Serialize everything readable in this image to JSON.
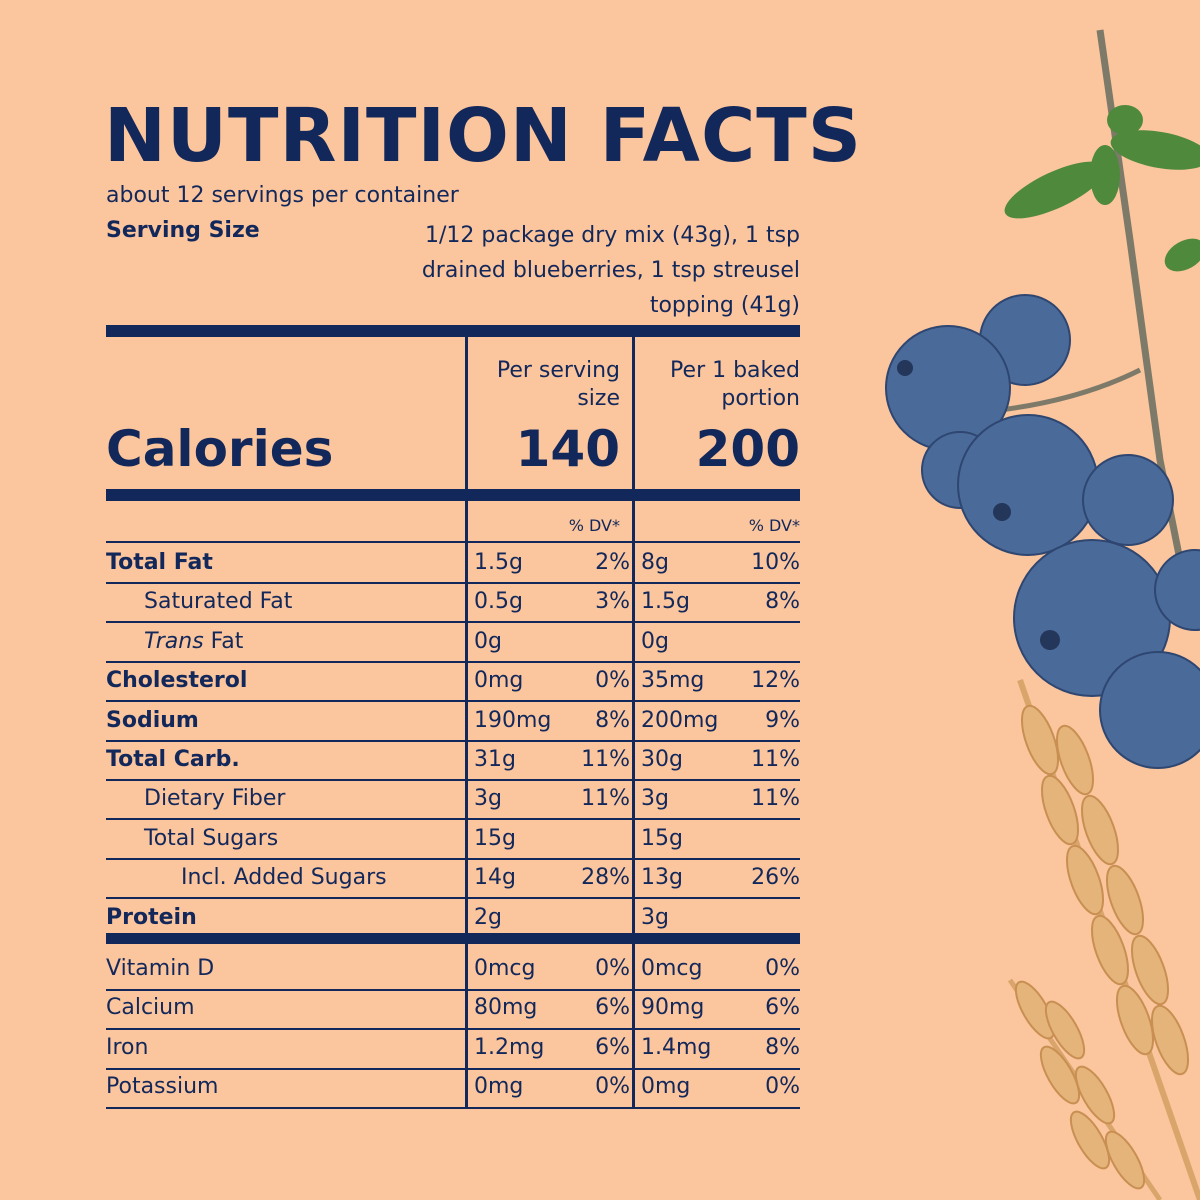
{
  "label": {
    "title": "NUTRITION FACTS",
    "servings_per_container": "about 12 servings per container",
    "serving_size_label": "Serving Size",
    "serving_size_lines": [
      "1/12 package dry mix (43g), 1 tsp",
      "drained blueberries, 1 tsp streusel",
      "topping (41g)"
    ]
  },
  "calories": {
    "label": "Calories",
    "col1_header_lines": [
      "Per serving",
      "size"
    ],
    "col2_header_lines": [
      "Per 1 baked",
      "portion"
    ],
    "col1_value": "140",
    "col2_value": "200"
  },
  "dv_header": "% DV*",
  "nutrients": [
    {
      "label": "Total Fat",
      "bold": true,
      "indent": 0,
      "c1": "1.5g",
      "c1dv": "2%",
      "c2": "8g",
      "c2dv": "10%"
    },
    {
      "label": "Saturated Fat",
      "bold": false,
      "indent": 1,
      "c1": "0.5g",
      "c1dv": "3%",
      "c2": "1.5g",
      "c2dv": "8%"
    },
    {
      "label": "Trans Fat",
      "bold": false,
      "indent": 1,
      "italic_word": "Trans",
      "c1": "0g",
      "c1dv": "",
      "c2": "0g",
      "c2dv": ""
    },
    {
      "label": "Cholesterol",
      "bold": true,
      "indent": 0,
      "c1": "0mg",
      "c1dv": "0%",
      "c2": "35mg",
      "c2dv": "12%"
    },
    {
      "label": "Sodium",
      "bold": true,
      "indent": 0,
      "c1": "190mg",
      "c1dv": "8%",
      "c2": "200mg",
      "c2dv": "9%"
    },
    {
      "label": "Total Carb.",
      "bold": true,
      "indent": 0,
      "c1": "31g",
      "c1dv": "11%",
      "c2": "30g",
      "c2dv": "11%"
    },
    {
      "label": "Dietary Fiber",
      "bold": false,
      "indent": 1,
      "c1": "3g",
      "c1dv": "11%",
      "c2": "3g",
      "c2dv": "11%"
    },
    {
      "label": "Total Sugars",
      "bold": false,
      "indent": 1,
      "c1": "15g",
      "c1dv": "",
      "c2": "15g",
      "c2dv": ""
    },
    {
      "label": "Incl. Added Sugars",
      "bold": false,
      "indent": 2,
      "c1": "14g",
      "c1dv": "28%",
      "c2": "13g",
      "c2dv": "26%"
    },
    {
      "label": "Protein",
      "bold": true,
      "indent": 0,
      "c1": "2g",
      "c1dv": "",
      "c2": "3g",
      "c2dv": ""
    }
  ],
  "vitamins": [
    {
      "label": "Vitamin D",
      "c1": "0mcg",
      "c1dv": "0%",
      "c2": "0mcg",
      "c2dv": "0%"
    },
    {
      "label": "Calcium",
      "c1": "80mg",
      "c1dv": "6%",
      "c2": "90mg",
      "c2dv": "6%"
    },
    {
      "label": "Iron",
      "c1": "1.2mg",
      "c1dv": "6%",
      "c2": "1.4mg",
      "c2dv": "8%"
    },
    {
      "label": "Potassium",
      "c1": "0mg",
      "c1dv": "0%",
      "c2": "0mg",
      "c2dv": "0%"
    }
  ],
  "colors": {
    "background": "#fbc59d",
    "ink": "#13285a",
    "blueberry": "#4a6a9a",
    "wheat": "#e4b47a",
    "leaf": "#4f8a3c"
  },
  "illustration": {
    "icon": "blueberries-and-wheat-illustration"
  }
}
